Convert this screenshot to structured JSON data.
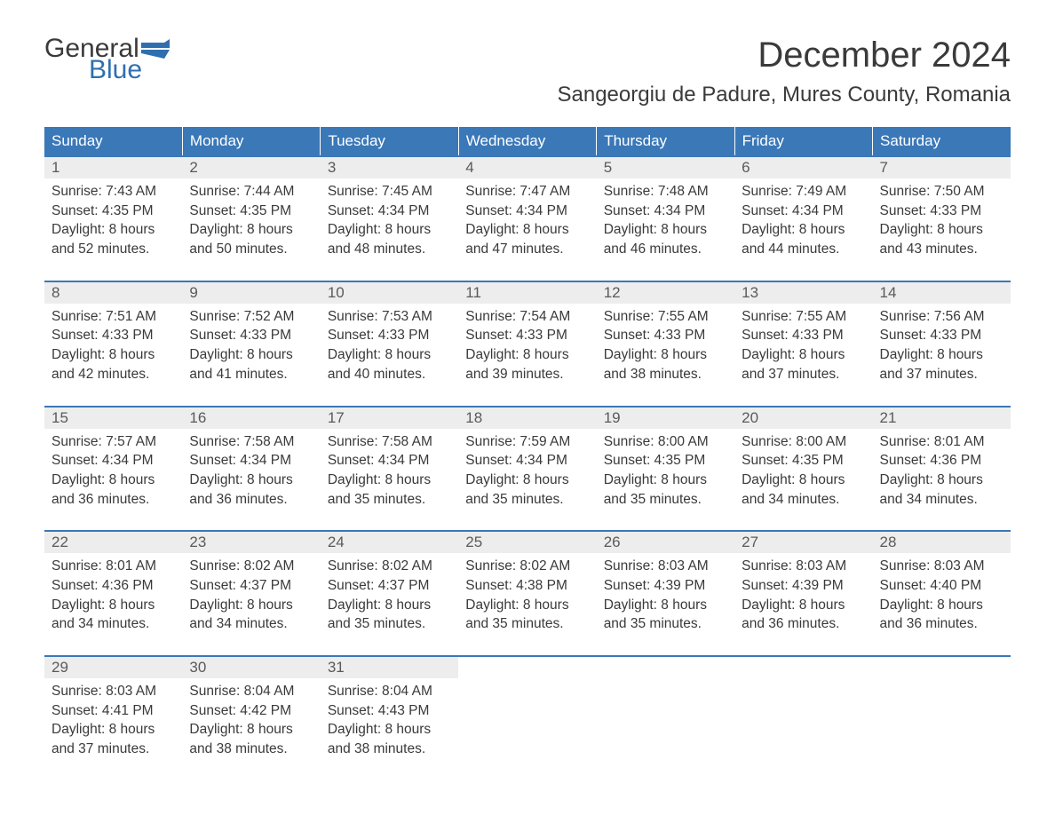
{
  "logo": {
    "word1": "General",
    "word2": "Blue",
    "text_color": "#3a3a3a",
    "accent_color": "#2f6fb0"
  },
  "title": "December 2024",
  "location": "Sangeorgiu de Padure, Mures County, Romania",
  "header_bg": "#3a78b8",
  "daynum_bg": "#ededed",
  "border_color": "#3a78b8",
  "day_headers": [
    "Sunday",
    "Monday",
    "Tuesday",
    "Wednesday",
    "Thursday",
    "Friday",
    "Saturday"
  ],
  "weeks": [
    [
      {
        "n": "1",
        "sr": "7:43 AM",
        "ss": "4:35 PM",
        "dh": "8",
        "dm": "52"
      },
      {
        "n": "2",
        "sr": "7:44 AM",
        "ss": "4:35 PM",
        "dh": "8",
        "dm": "50"
      },
      {
        "n": "3",
        "sr": "7:45 AM",
        "ss": "4:34 PM",
        "dh": "8",
        "dm": "48"
      },
      {
        "n": "4",
        "sr": "7:47 AM",
        "ss": "4:34 PM",
        "dh": "8",
        "dm": "47"
      },
      {
        "n": "5",
        "sr": "7:48 AM",
        "ss": "4:34 PM",
        "dh": "8",
        "dm": "46"
      },
      {
        "n": "6",
        "sr": "7:49 AM",
        "ss": "4:34 PM",
        "dh": "8",
        "dm": "44"
      },
      {
        "n": "7",
        "sr": "7:50 AM",
        "ss": "4:33 PM",
        "dh": "8",
        "dm": "43"
      }
    ],
    [
      {
        "n": "8",
        "sr": "7:51 AM",
        "ss": "4:33 PM",
        "dh": "8",
        "dm": "42"
      },
      {
        "n": "9",
        "sr": "7:52 AM",
        "ss": "4:33 PM",
        "dh": "8",
        "dm": "41"
      },
      {
        "n": "10",
        "sr": "7:53 AM",
        "ss": "4:33 PM",
        "dh": "8",
        "dm": "40"
      },
      {
        "n": "11",
        "sr": "7:54 AM",
        "ss": "4:33 PM",
        "dh": "8",
        "dm": "39"
      },
      {
        "n": "12",
        "sr": "7:55 AM",
        "ss": "4:33 PM",
        "dh": "8",
        "dm": "38"
      },
      {
        "n": "13",
        "sr": "7:55 AM",
        "ss": "4:33 PM",
        "dh": "8",
        "dm": "37"
      },
      {
        "n": "14",
        "sr": "7:56 AM",
        "ss": "4:33 PM",
        "dh": "8",
        "dm": "37"
      }
    ],
    [
      {
        "n": "15",
        "sr": "7:57 AM",
        "ss": "4:34 PM",
        "dh": "8",
        "dm": "36"
      },
      {
        "n": "16",
        "sr": "7:58 AM",
        "ss": "4:34 PM",
        "dh": "8",
        "dm": "36"
      },
      {
        "n": "17",
        "sr": "7:58 AM",
        "ss": "4:34 PM",
        "dh": "8",
        "dm": "35"
      },
      {
        "n": "18",
        "sr": "7:59 AM",
        "ss": "4:34 PM",
        "dh": "8",
        "dm": "35"
      },
      {
        "n": "19",
        "sr": "8:00 AM",
        "ss": "4:35 PM",
        "dh": "8",
        "dm": "35"
      },
      {
        "n": "20",
        "sr": "8:00 AM",
        "ss": "4:35 PM",
        "dh": "8",
        "dm": "34"
      },
      {
        "n": "21",
        "sr": "8:01 AM",
        "ss": "4:36 PM",
        "dh": "8",
        "dm": "34"
      }
    ],
    [
      {
        "n": "22",
        "sr": "8:01 AM",
        "ss": "4:36 PM",
        "dh": "8",
        "dm": "34"
      },
      {
        "n": "23",
        "sr": "8:02 AM",
        "ss": "4:37 PM",
        "dh": "8",
        "dm": "34"
      },
      {
        "n": "24",
        "sr": "8:02 AM",
        "ss": "4:37 PM",
        "dh": "8",
        "dm": "35"
      },
      {
        "n": "25",
        "sr": "8:02 AM",
        "ss": "4:38 PM",
        "dh": "8",
        "dm": "35"
      },
      {
        "n": "26",
        "sr": "8:03 AM",
        "ss": "4:39 PM",
        "dh": "8",
        "dm": "35"
      },
      {
        "n": "27",
        "sr": "8:03 AM",
        "ss": "4:39 PM",
        "dh": "8",
        "dm": "36"
      },
      {
        "n": "28",
        "sr": "8:03 AM",
        "ss": "4:40 PM",
        "dh": "8",
        "dm": "36"
      }
    ],
    [
      {
        "n": "29",
        "sr": "8:03 AM",
        "ss": "4:41 PM",
        "dh": "8",
        "dm": "37"
      },
      {
        "n": "30",
        "sr": "8:04 AM",
        "ss": "4:42 PM",
        "dh": "8",
        "dm": "38"
      },
      {
        "n": "31",
        "sr": "8:04 AM",
        "ss": "4:43 PM",
        "dh": "8",
        "dm": "38"
      },
      null,
      null,
      null,
      null
    ]
  ],
  "labels": {
    "sunrise": "Sunrise:",
    "sunset": "Sunset:",
    "daylight": "Daylight:",
    "hours": "hours",
    "and": "and",
    "minutes": "minutes."
  }
}
